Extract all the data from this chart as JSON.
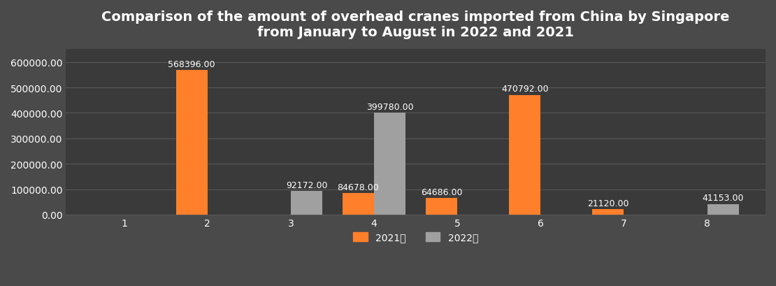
{
  "title": "Comparison of the amount of overhead cranes imported from China by Singapore\nfrom January to August in 2022 and 2021",
  "months": [
    1,
    2,
    3,
    4,
    5,
    6,
    7,
    8
  ],
  "values_2021": [
    0,
    568396.0,
    0,
    84678.0,
    64686.0,
    470792.0,
    21120.0,
    0
  ],
  "values_2022": [
    0,
    0,
    92172.0,
    399780.0,
    0,
    0,
    0,
    41153.0
  ],
  "bar_color_2021": "#FF7F2A",
  "bar_color_2022": "#A0A0A0",
  "background_color": "#4A4A4A",
  "plot_bg_color": "#3A3A3A",
  "text_color": "#FFFFFF",
  "grid_color": "#585858",
  "legend_2021": "2021年",
  "legend_2022": "2022年",
  "ylim": [
    0,
    650000
  ],
  "yticks": [
    0,
    100000,
    200000,
    300000,
    400000,
    500000,
    600000
  ],
  "title_fontsize": 14,
  "tick_fontsize": 10,
  "label_fontsize": 9,
  "bar_width": 0.38
}
